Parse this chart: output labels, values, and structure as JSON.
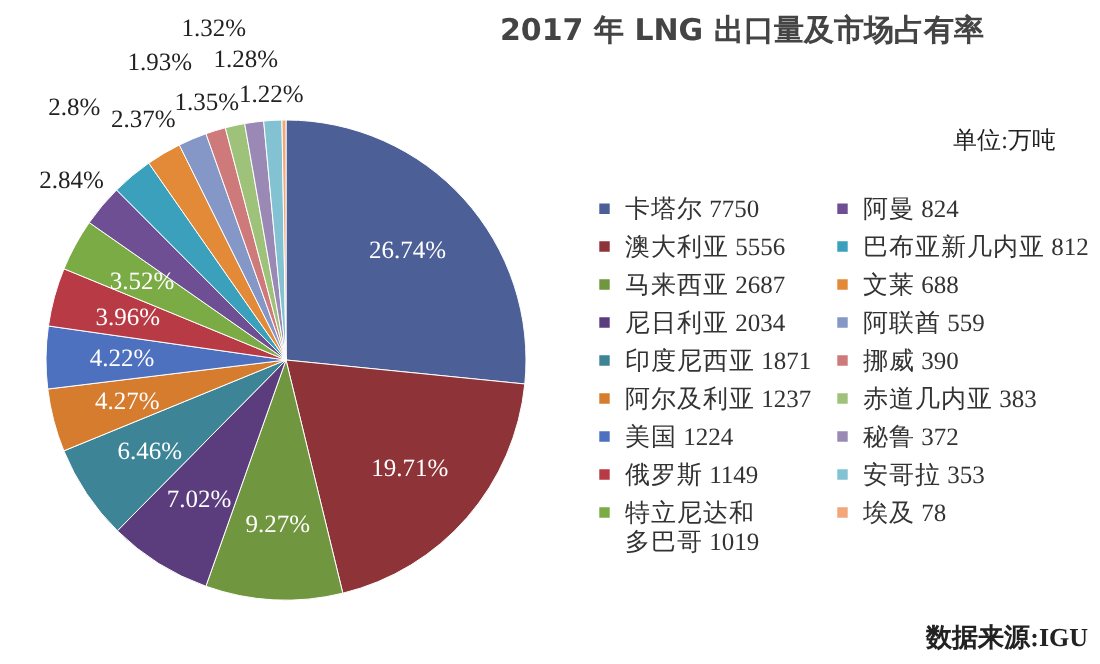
{
  "chart_data": {
    "type": "pie",
    "title": "2017 年 LNG 出口量及市场占有率",
    "categories": [
      "卡塔尔 7750",
      "澳大利亚 5556",
      "马来西亚 2687",
      "尼日利亚 2034",
      "印度尼西亚 1871",
      "阿尔及利亚 1237",
      "美国 1224",
      "俄罗斯 1149",
      "特立尼达和多巴哥 1019",
      "阿曼 824",
      "巴布亚新几内亚 812",
      "文莱 688",
      "阿联酋 559",
      "挪威 390",
      "赤道几内亚 383",
      "秘鲁 372",
      "安哥拉 353",
      "埃及 78"
    ],
    "values": [
      26.74,
      19.71,
      9.27,
      7.02,
      6.46,
      4.27,
      4.22,
      3.96,
      3.52,
      2.84,
      2.8,
      2.37,
      1.93,
      1.35,
      1.32,
      1.28,
      1.22,
      0.27
    ],
    "value_labels": [
      "26.74%",
      "19.71%",
      "9.27%",
      "7.02%",
      "6.46%",
      "4.27%",
      "4.22%",
      "3.96%",
      "3.52%",
      "2.84%",
      "2.8%",
      "2.37%",
      "1.93%",
      "1.35%",
      "1.32%",
      "1.28%",
      "1.22%",
      null
    ],
    "colors": [
      "#4c5f96",
      "#8e3338",
      "#70963f",
      "#5b3d7e",
      "#3d8496",
      "#d57c2e",
      "#4d70bf",
      "#b73a45",
      "#7aab45",
      "#6f4f93",
      "#3aa0bc",
      "#e28a38",
      "#8497c7",
      "#cf7a7a",
      "#9fc27a",
      "#9a88b5",
      "#82c2d2",
      "#f2a77a"
    ],
    "legend": "right",
    "annotations": [
      "单位:万吨",
      "数据来源:IGU"
    ]
  }
}
